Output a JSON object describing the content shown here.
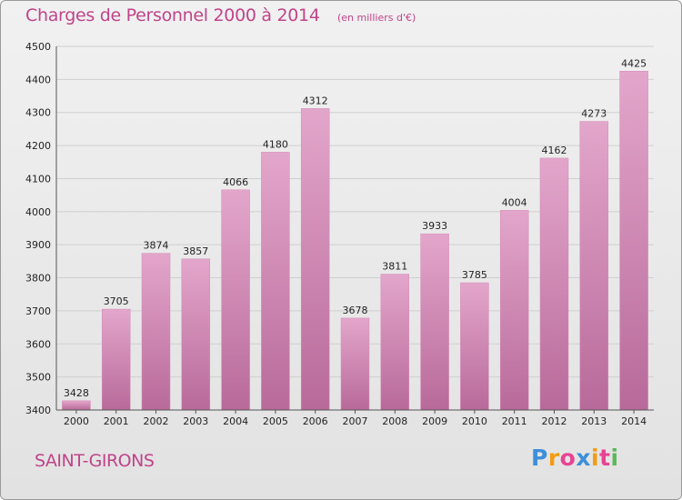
{
  "header": {
    "title": "Charges de Personnel 2000 à 2014",
    "subtitle": "(en milliers d'€)"
  },
  "footer": {
    "city": "SAINT-GIRONS",
    "logo": "Proxiti"
  },
  "colors": {
    "bar_top": "#e3a6cb",
    "bar_bottom": "#b86a9a",
    "accent": "#c0448a"
  },
  "chart_data": {
    "type": "bar",
    "categories": [
      "2000",
      "2001",
      "2002",
      "2003",
      "2004",
      "2005",
      "2006",
      "2007",
      "2008",
      "2009",
      "2010",
      "2011",
      "2012",
      "2013",
      "2014"
    ],
    "values": [
      3428,
      3705,
      3874,
      3857,
      4066,
      4180,
      4312,
      3678,
      3811,
      3933,
      3785,
      4004,
      4162,
      4273,
      4425
    ],
    "ylim": [
      3400,
      4500
    ],
    "yticks": [
      3400,
      3500,
      3600,
      3700,
      3800,
      3900,
      4000,
      4100,
      4200,
      4300,
      4400,
      4500
    ],
    "grid": true,
    "data_labels": true
  }
}
